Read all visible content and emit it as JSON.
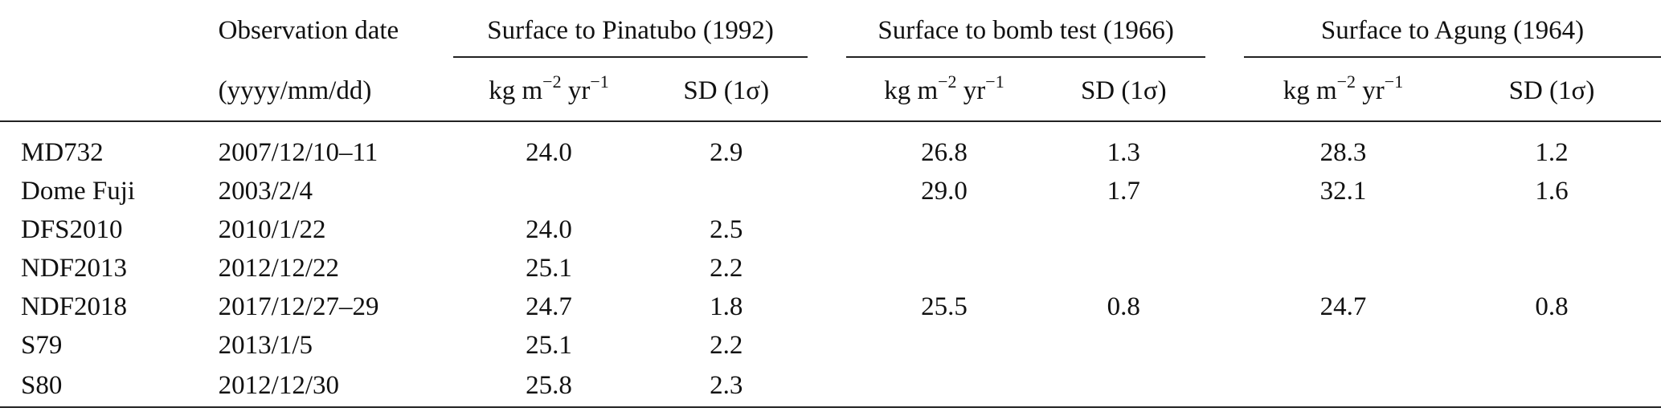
{
  "header": {
    "date_label_line1": "Observation date",
    "date_label_line2": "(yyyy/mm/dd)",
    "groups": [
      {
        "label": "Surface to Pinatubo (1992)"
      },
      {
        "label": "Surface to bomb test (1966)"
      },
      {
        "label": "Surface to Agung (1964)"
      }
    ],
    "unit_main": "kg m",
    "unit_exp1": "−2",
    "unit_mid": " yr",
    "unit_exp2": "−1",
    "sd_label": "SD (1σ)"
  },
  "rows": [
    {
      "name": "MD732",
      "date": "2007/12/10–11",
      "p_val": "24.0",
      "p_sd": "2.9",
      "b_val": "26.8",
      "b_sd": "1.3",
      "a_val": "28.3",
      "a_sd": "1.2"
    },
    {
      "name": "Dome Fuji",
      "date": "2003/2/4",
      "p_val": "",
      "p_sd": "",
      "b_val": "29.0",
      "b_sd": "1.7",
      "a_val": "32.1",
      "a_sd": "1.6"
    },
    {
      "name": "DFS2010",
      "date": "2010/1/22",
      "p_val": "24.0",
      "p_sd": "2.5",
      "b_val": "",
      "b_sd": "",
      "a_val": "",
      "a_sd": ""
    },
    {
      "name": "NDF2013",
      "date": "2012/12/22",
      "p_val": "25.1",
      "p_sd": "2.2",
      "b_val": "",
      "b_sd": "",
      "a_val": "",
      "a_sd": ""
    },
    {
      "name": "NDF2018",
      "date": "2017/12/27–29",
      "p_val": "24.7",
      "p_sd": "1.8",
      "b_val": "25.5",
      "b_sd": "0.8",
      "a_val": "24.7",
      "a_sd": "0.8"
    },
    {
      "name": "S79",
      "date": "2013/1/5",
      "p_val": "25.1",
      "p_sd": "2.2",
      "b_val": "",
      "b_sd": "",
      "a_val": "",
      "a_sd": ""
    },
    {
      "name": "S80",
      "date": "2012/12/30",
      "p_val": "25.8",
      "p_sd": "2.3",
      "b_val": "",
      "b_sd": "",
      "a_val": "",
      "a_sd": ""
    }
  ]
}
